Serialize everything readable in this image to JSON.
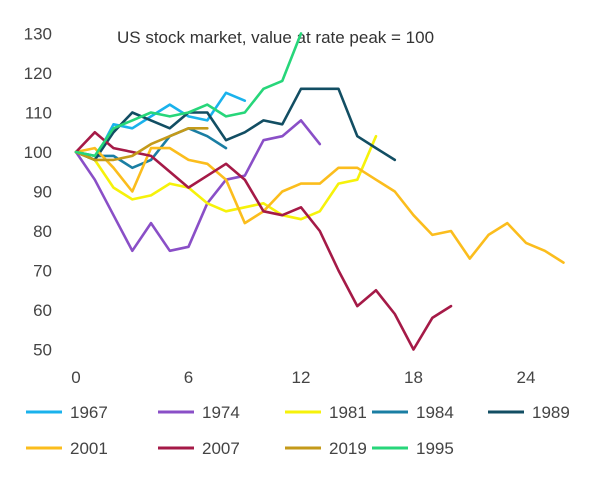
{
  "chart_data": {
    "type": "line",
    "title": "US stock market, value at rate peak = 100",
    "xlabel": "",
    "ylabel": "",
    "xlim": [
      0,
      27
    ],
    "ylim": [
      45,
      132
    ],
    "xticks": [
      "0",
      "6",
      "12",
      "18",
      "24"
    ],
    "yticks": [
      "50",
      "60",
      "70",
      "80",
      "90",
      "100",
      "110",
      "120",
      "130"
    ],
    "grid": false,
    "legend_position": "bottom",
    "series": [
      {
        "name": "1967",
        "color": "#1ab2ec",
        "x": [
          0,
          1,
          2,
          3,
          4,
          5,
          6,
          7,
          8,
          9
        ],
        "y": [
          100,
          98,
          107,
          106,
          109,
          112,
          109,
          108,
          115,
          113
        ]
      },
      {
        "name": "1974",
        "color": "#8a4fc7",
        "x": [
          0,
          1,
          2,
          3,
          4,
          5,
          6,
          7,
          8,
          9,
          10,
          11,
          12,
          13
        ],
        "y": [
          100,
          93,
          84,
          75,
          82,
          75,
          76,
          87,
          93,
          94,
          103,
          104,
          108,
          102
        ]
      },
      {
        "name": "1981",
        "color": "#f6f20a",
        "x": [
          0,
          1,
          2,
          3,
          4,
          5,
          6,
          7,
          8,
          9,
          10,
          11,
          12,
          13,
          14,
          15,
          16
        ],
        "y": [
          100,
          98,
          91,
          88,
          89,
          92,
          91,
          87,
          85,
          86,
          87,
          84,
          83,
          85,
          92,
          93,
          104
        ]
      },
      {
        "name": "1984",
        "color": "#1a7ea3",
        "x": [
          0,
          1,
          2,
          3,
          4,
          5,
          6,
          7,
          8
        ],
        "y": [
          100,
          99,
          99,
          96,
          98,
          104,
          106,
          104,
          101
        ]
      },
      {
        "name": "1989",
        "color": "#124e63",
        "x": [
          0,
          1,
          2,
          3,
          4,
          5,
          6,
          7,
          8,
          9,
          10,
          11,
          12,
          13,
          14,
          15,
          16,
          17
        ],
        "y": [
          100,
          98,
          105,
          110,
          108,
          106,
          110,
          110,
          103,
          105,
          108,
          107,
          116,
          116,
          116,
          104,
          101,
          98
        ]
      },
      {
        "name": "2001",
        "color": "#fbbd1d",
        "x": [
          0,
          1,
          2,
          3,
          4,
          5,
          6,
          7,
          8,
          9,
          10,
          11,
          12,
          13,
          14,
          15,
          16,
          17,
          18,
          19,
          20,
          21,
          22,
          23,
          24,
          25,
          26
        ],
        "y": [
          100,
          101,
          96,
          90,
          101,
          101,
          98,
          97,
          93,
          82,
          85,
          90,
          92,
          92,
          96,
          96,
          93,
          90,
          84,
          79,
          80,
          73,
          79,
          82,
          77,
          75,
          72
        ]
      },
      {
        "name": "2007",
        "color": "#a51a47",
        "x": [
          0,
          1,
          2,
          3,
          4,
          5,
          6,
          7,
          8,
          9,
          10,
          11,
          12,
          13,
          14,
          15,
          16,
          17,
          18,
          19,
          20
        ],
        "y": [
          100,
          105,
          101,
          100,
          99,
          95,
          91,
          94,
          97,
          93,
          85,
          84,
          86,
          80,
          70,
          61,
          65,
          59,
          50,
          58,
          61
        ]
      },
      {
        "name": "2019",
        "color": "#c49a1a",
        "x": [
          0,
          1,
          2,
          3,
          4,
          5,
          6,
          7
        ],
        "y": [
          100,
          98,
          98,
          99,
          102,
          104,
          106,
          106
        ]
      },
      {
        "name": "1995",
        "color": "#27d67a",
        "x": [
          0,
          1,
          2,
          3,
          4,
          5,
          6,
          7,
          8,
          9,
          10,
          11,
          12
        ],
        "y": [
          100,
          99,
          106,
          108,
          110,
          109,
          110,
          112,
          109,
          110,
          116,
          118,
          130
        ]
      }
    ]
  }
}
